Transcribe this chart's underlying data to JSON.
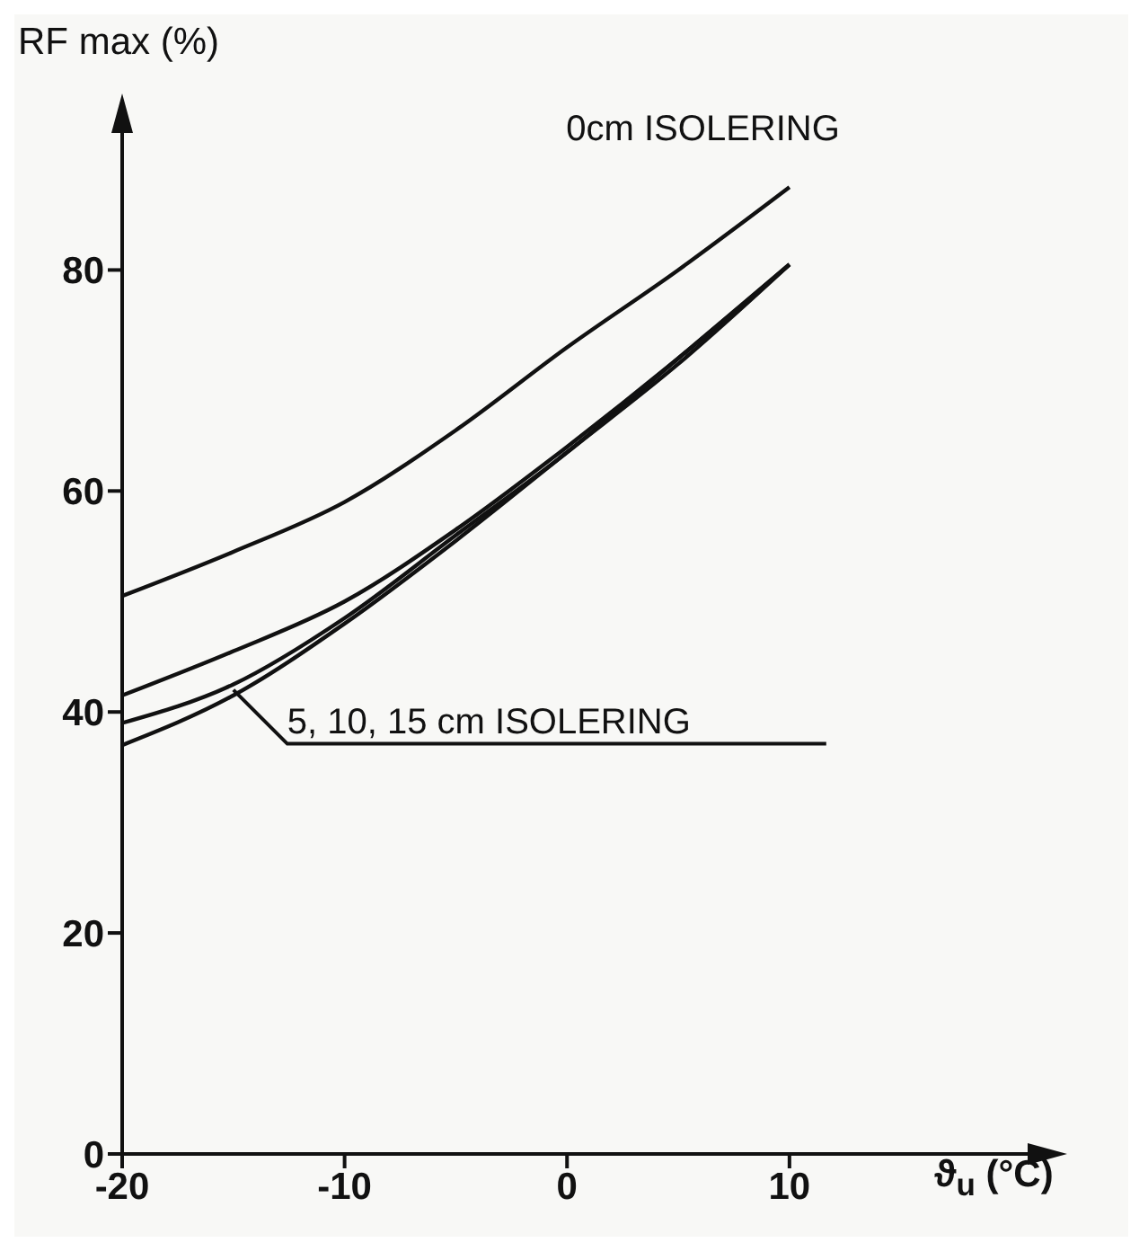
{
  "chart_data": {
    "type": "line",
    "xlabel": "ϑ$_{u}$ (°C)",
    "ylabel": "RF max (%)",
    "x": [
      -20,
      -15,
      -10,
      -5,
      0,
      5,
      10
    ],
    "series": [
      {
        "color": "#111111",
        "values": [
          50.5,
          54.5,
          59,
          65.5,
          73,
          80,
          87.5
        ]
      },
      {
        "color": "#111111",
        "values": [
          41.5,
          45.5,
          50,
          56.5,
          64,
          72,
          80.5
        ]
      },
      {
        "color": "#111111",
        "values": [
          39,
          42.5,
          48.5,
          56,
          63.5,
          72,
          80.5
        ]
      },
      {
        "color": "#111111",
        "values": [
          37,
          41.5,
          48,
          55.5,
          63.5,
          71.5,
          80.5
        ]
      }
    ],
    "xlim": [
      -20,
      22
    ],
    "ylim": [
      0,
      95
    ],
    "xticks": [
      -20,
      -10,
      0,
      10
    ],
    "yticks": [
      0,
      20,
      40,
      60,
      80
    ],
    "annotations": [
      {
        "text": "0cm ISOLERING",
        "x": 10,
        "y": 87.5
      },
      {
        "text": "5, 10, 15 cm ISOLERING",
        "x": -15,
        "y": 42
      }
    ]
  }
}
